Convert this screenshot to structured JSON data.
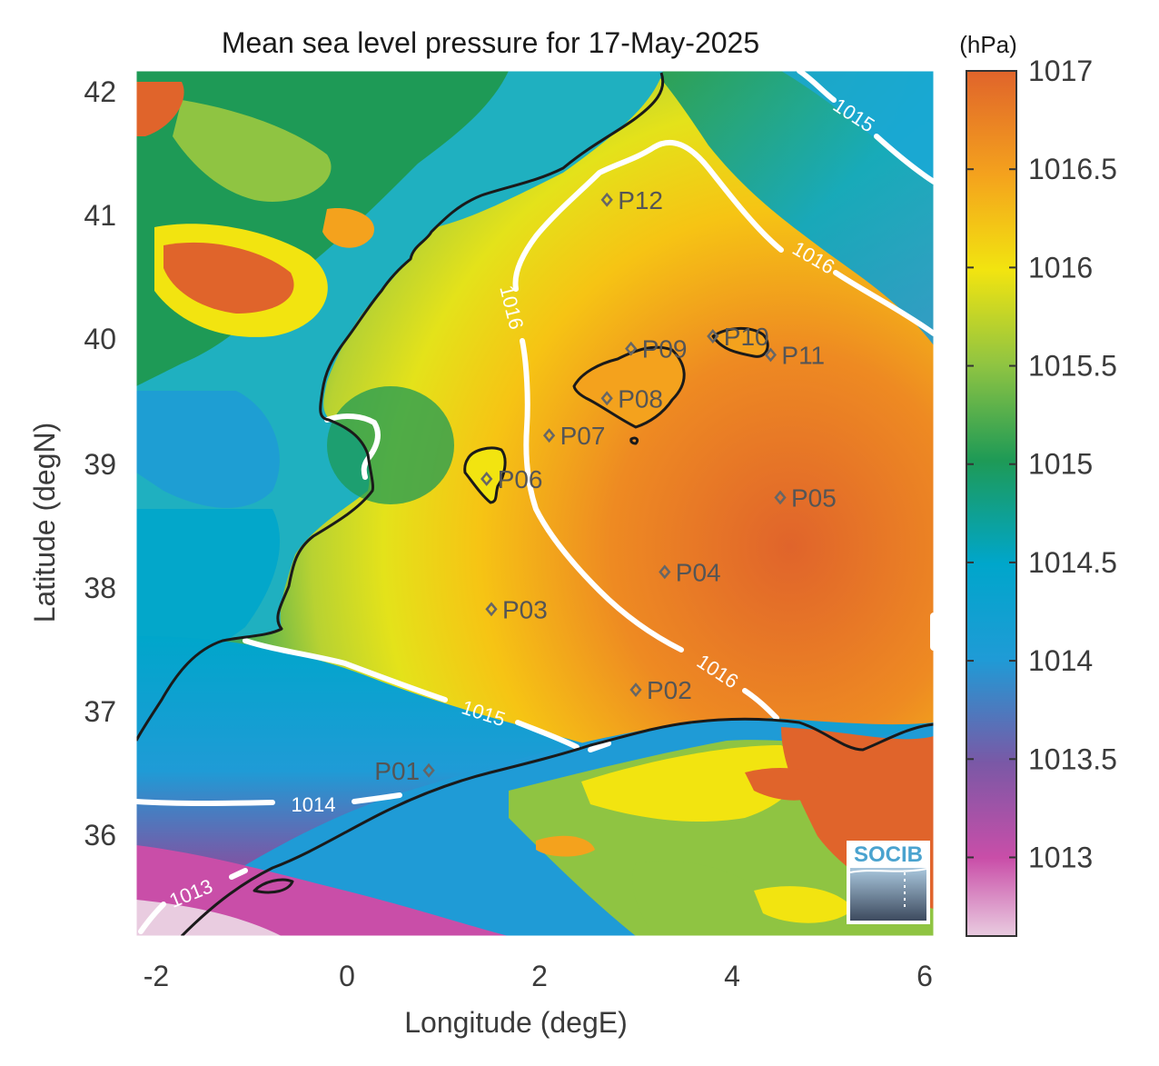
{
  "title": "Mean sea level pressure for 17-May-2025",
  "unit": "(hPa)",
  "xlabel": "Longitude (degE)",
  "ylabel": "Latitude (degN)",
  "x_ticks": [
    "-2",
    "0",
    "2",
    "4",
    "6"
  ],
  "y_ticks": [
    "42",
    "41",
    "40",
    "39",
    "38",
    "37",
    "36"
  ],
  "colorbar": {
    "ticks": [
      "1017",
      "1016.5",
      "1016",
      "1015.5",
      "1015",
      "1014.5",
      "1014",
      "1013.5",
      "1013"
    ],
    "range": [
      1012.6,
      1017.0
    ],
    "colors": [
      "#e9cce0",
      "#c94ea8",
      "#7a58a6",
      "#1f9bd6",
      "#00a6cb",
      "#1e9a56",
      "#8fc442",
      "#f2e410",
      "#f4a21d",
      "#e0642b"
    ]
  },
  "logo": "SOCIB",
  "stations": [
    {
      "label": "P01",
      "lon": 0.85,
      "lat": 36.5
    },
    {
      "label": "P02",
      "lon": 3.0,
      "lat": 37.15
    },
    {
      "label": "P03",
      "lon": 1.5,
      "lat": 37.8
    },
    {
      "label": "P04",
      "lon": 3.3,
      "lat": 38.1
    },
    {
      "label": "P05",
      "lon": 4.5,
      "lat": 38.7
    },
    {
      "label": "P06",
      "lon": 1.45,
      "lat": 38.85
    },
    {
      "label": "P07",
      "lon": 2.1,
      "lat": 39.2
    },
    {
      "label": "P08",
      "lon": 2.7,
      "lat": 39.5
    },
    {
      "label": "P09",
      "lon": 2.95,
      "lat": 39.9
    },
    {
      "label": "P10",
      "lon": 3.8,
      "lat": 40.0
    },
    {
      "label": "P11",
      "lon": 4.4,
      "lat": 39.85
    },
    {
      "label": "P12",
      "lon": 2.7,
      "lat": 41.1
    }
  ],
  "contours": [
    {
      "level": "1016"
    },
    {
      "level": "1015"
    },
    {
      "level": "1014"
    },
    {
      "level": "1013"
    }
  ],
  "colors": {
    "contour": "#ffffff",
    "coastline": "#1a1a1a",
    "station": "#666666"
  }
}
